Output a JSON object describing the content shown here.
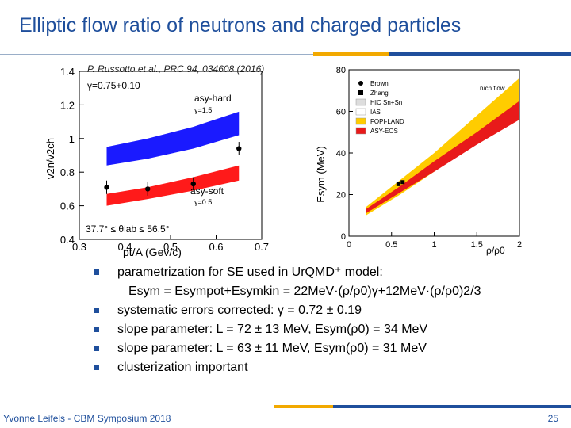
{
  "slide": {
    "title": "Elliptic flow ratio of neutrons and charged particles",
    "footer_left": "Yvonne Leifels - CBM Symposium 2018",
    "page_number": "25",
    "accent_color": "#1f4f9c",
    "accent_yellow": "#f2a900"
  },
  "left_figure": {
    "reference": "P. Russotto et al., PRC 94, 034608 (2016)",
    "gamma_label": "γ=0.75+0.10",
    "hard_label": "asy-hard",
    "hard_gamma": "γ=1.5",
    "soft_label": "asy-soft",
    "soft_gamma": "γ=0.5",
    "angle_label": "37.7° ≤ θlab ≤ 56.5°",
    "ylabel": "v2n/v2ch",
    "xlabel": "pt/A   (Gev/c)",
    "yticks": [
      "1.4",
      "1.2",
      "1",
      "0.8",
      "0.6",
      "0.4"
    ],
    "xticks": [
      "0.3",
      "0.4",
      "0.5",
      "0.6",
      "0.7"
    ]
  },
  "right_figure": {
    "title": "n/ch flow",
    "ylabel": "Esym (MeV)",
    "xlabel": "ρ/ρ0",
    "yticks": [
      "80",
      "60",
      "40",
      "20",
      "0"
    ],
    "xticks": [
      "0",
      "0.5",
      "1",
      "1.5",
      "2"
    ],
    "legend": [
      "Brown",
      "Zhang",
      "HIC Sn+Sn",
      "IAS",
      "FOPI-LAND",
      "ASY-EOS"
    ]
  },
  "chart_data": [
    {
      "type": "line",
      "title": "",
      "xlabel": "pt/A (Gev/c)",
      "ylabel": "v2n/v2ch",
      "xlim": [
        0.3,
        0.7
      ],
      "ylim": [
        0.4,
        1.4
      ],
      "series": [
        {
          "name": "asy-hard",
          "x": [
            0.36,
            0.45,
            0.55,
            0.65
          ],
          "lower": [
            0.84,
            0.88,
            0.94,
            1.02
          ],
          "upper": [
            0.95,
            1.0,
            1.07,
            1.16
          ]
        },
        {
          "name": "asy-soft",
          "x": [
            0.36,
            0.45,
            0.55,
            0.65
          ],
          "lower": [
            0.6,
            0.64,
            0.69,
            0.75
          ],
          "upper": [
            0.67,
            0.71,
            0.77,
            0.84
          ]
        },
        {
          "name": "data",
          "x": [
            0.36,
            0.45,
            0.55,
            0.65
          ],
          "y": [
            0.71,
            0.7,
            0.73,
            0.94
          ]
        }
      ]
    },
    {
      "type": "area",
      "title": "",
      "xlabel": "ρ/ρ0",
      "ylabel": "Esym (MeV)",
      "xlim": [
        0,
        2
      ],
      "ylim": [
        0,
        80
      ],
      "series": [
        {
          "name": "FOPI-LAND",
          "x": [
            0.2,
            0.6,
            1.0,
            1.5,
            2.0
          ],
          "lower": [
            10,
            20,
            31,
            45,
            62
          ],
          "upper": [
            14,
            27,
            40,
            58,
            76
          ]
        },
        {
          "name": "ASY-EOS",
          "x": [
            0.2,
            0.6,
            1.0,
            1.5,
            2.0
          ],
          "lower": [
            11,
            21,
            31,
            44,
            56
          ],
          "upper": [
            13,
            24,
            36,
            50,
            65
          ]
        },
        {
          "name": "Zhang",
          "x": [
            0.58,
            0.63
          ],
          "y": [
            25,
            26
          ]
        }
      ]
    }
  ],
  "bullets": [
    {
      "text": "parametrization for SE used in UrQMD⁺ model:"
    },
    {
      "text": "systematic errors corrected: γ = 0.72 ± 0.19"
    },
    {
      "text": "slope parameter: L = 72 ± 13 MeV, Esym(ρ0) = 34 MeV"
    },
    {
      "text": "slope parameter: L = 63 ± 11 MeV, Esym(ρ0) = 31 MeV"
    },
    {
      "text": "clusterization important"
    }
  ],
  "formula": "Esym = Esympot+Esymkin = 22MeV·(ρ/ρ0)γ+12MeV·(ρ/ρ0)2/3"
}
